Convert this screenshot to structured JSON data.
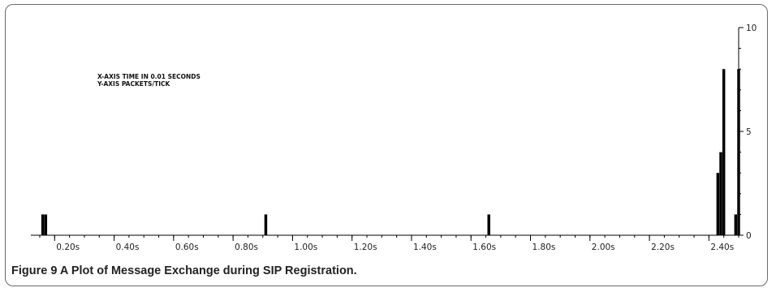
{
  "caption": "Figure 9 A Plot of Message Exchange during SIP Registration.",
  "chart_data": {
    "type": "bar",
    "title": "",
    "xlabel": "",
    "ylabel": "",
    "annotations": [
      "X-AXIS TIME IN 0.01 SECONDS",
      "Y-AXIS PACKETS/TICK"
    ],
    "xlim": [
      0.12,
      2.5
    ],
    "ylim": [
      0,
      10
    ],
    "x_tick_labels": [
      "0.20s",
      "0.40s",
      "0.60s",
      "0.80s",
      "1.00s",
      "1.20s",
      "1.40s",
      "1.60s",
      "1.80s",
      "2.00s",
      "2.20s",
      "2.40s"
    ],
    "x_tick_values": [
      0.2,
      0.4,
      0.6,
      0.8,
      1.0,
      1.2,
      1.4,
      1.6,
      1.8,
      2.0,
      2.2,
      2.4
    ],
    "y_tick_labels": [
      "0",
      "5",
      "10"
    ],
    "y_tick_values": [
      0,
      5,
      10
    ],
    "y_axis_side": "right",
    "grid": false,
    "bar_width": 0.01,
    "series": [
      {
        "color": "#000000",
        "x": [
          0.16,
          0.17,
          0.91,
          1.66,
          2.43,
          2.44,
          2.45,
          2.49,
          2.5
        ],
        "values": [
          1,
          1,
          1,
          1,
          3,
          4,
          8,
          1,
          8
        ]
      }
    ]
  }
}
